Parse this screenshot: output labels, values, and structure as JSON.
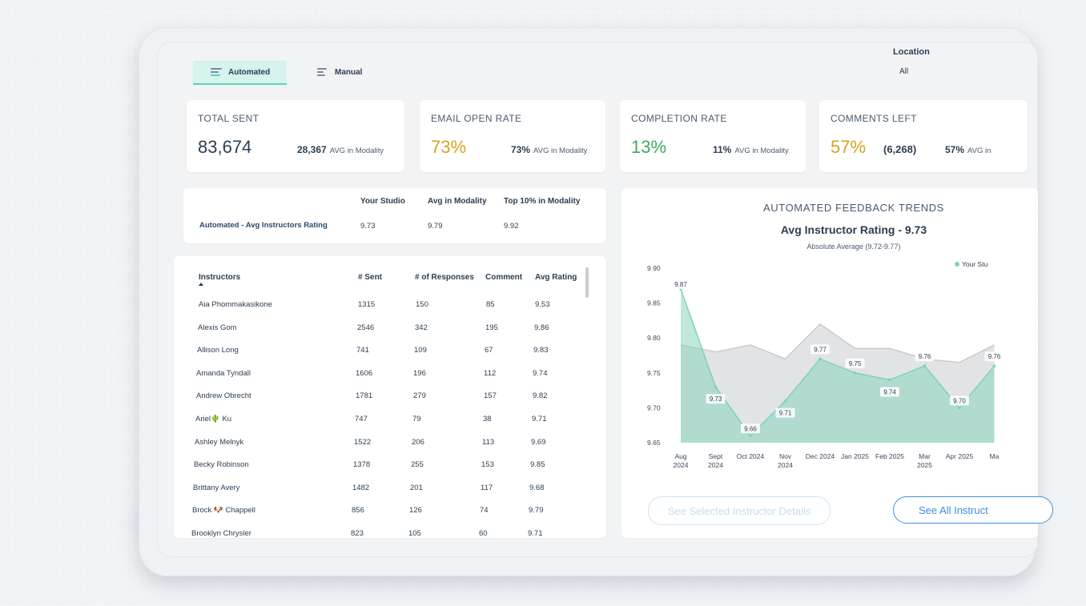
{
  "modes": [
    {
      "label": "Automated",
      "active": true
    },
    {
      "label": "Manual",
      "active": false
    }
  ],
  "location": {
    "label": "Location",
    "value": "All"
  },
  "kpis": [
    {
      "title": "TOTAL SENT",
      "value": "83,674",
      "value_color": "#2c3e50",
      "avg_value": "28,367",
      "avg_label": "AVG in Modality"
    },
    {
      "title": "EMAIL OPEN RATE",
      "value": "73%",
      "value_color": "#d9a21b",
      "avg_value": "73%",
      "avg_label": "AVG in Modality"
    },
    {
      "title": "COMPLETION RATE",
      "value": "13%",
      "value_color": "#3eaa5c",
      "avg_value": "11%",
      "avg_label": "AVG in Modality"
    },
    {
      "title": "COMMENTS LEFT",
      "value": "57%",
      "value_color": "#d9a21b",
      "extra": "(6,268)",
      "avg_value": "57%",
      "avg_label": "AVG in"
    }
  ],
  "summary": {
    "headers": [
      "Your Studio",
      "Avg in Modality",
      "Top 10% in Modality"
    ],
    "row_label": "Automated - Avg Instructors Rating",
    "values": [
      "9.73",
      "9.79",
      "9.92"
    ]
  },
  "instructors": {
    "headers": [
      "Instructors",
      "# Sent",
      "# of Responses",
      "Comment",
      "Avg Rating"
    ],
    "rows": [
      {
        "name": "Aia Phommakasikone",
        "sent": "1315",
        "responses": "150",
        "comment": "85",
        "rating": "9.53"
      },
      {
        "name": "Alexis Gom",
        "sent": "2546",
        "responses": "342",
        "comment": "195",
        "rating": "9.86"
      },
      {
        "name": "Allison Long",
        "sent": "741",
        "responses": "109",
        "comment": "67",
        "rating": "9.83"
      },
      {
        "name": "Amanda Tyndall",
        "sent": "1606",
        "responses": "196",
        "comment": "112",
        "rating": "9.74"
      },
      {
        "name": "Andrew Obrecht",
        "sent": "1781",
        "responses": "279",
        "comment": "157",
        "rating": "9.82"
      },
      {
        "name": "Ariel🌵 Ku",
        "sent": "747",
        "responses": "79",
        "comment": "38",
        "rating": "9.71"
      },
      {
        "name": "Ashley Melnyk",
        "sent": "1522",
        "responses": "206",
        "comment": "113",
        "rating": "9.69"
      },
      {
        "name": "Becky Robinson",
        "sent": "1378",
        "responses": "255",
        "comment": "153",
        "rating": "9.85"
      },
      {
        "name": "Brittany Avery",
        "sent": "1482",
        "responses": "201",
        "comment": "117",
        "rating": "9.68"
      },
      {
        "name": "Brock 🐶 Chappell",
        "sent": "856",
        "responses": "126",
        "comment": "74",
        "rating": "9.79"
      },
      {
        "name": "Brooklyn Chrysler",
        "sent": "823",
        "responses": "105",
        "comment": "60",
        "rating": "9.71"
      }
    ]
  },
  "trends": {
    "heading": "AUTOMATED FEEDBACK TRENDS",
    "title": "Avg Instructor Rating - 9.73",
    "subtitle": "Absolute Average (9.72-9.77)"
  },
  "chart_data": {
    "type": "area",
    "categories": [
      "Aug 2024",
      "Sept 2024",
      "Oct 2024",
      "Nov 2024",
      "Dec 2024",
      "Jan 2025",
      "Feb 2025",
      "Mar 2025",
      "Apr 2025",
      "Ma"
    ],
    "ylim": [
      9.65,
      9.9
    ],
    "yticks": [
      "9.90",
      "9.85",
      "9.80",
      "9.75",
      "9.70",
      "9.65"
    ],
    "series": [
      {
        "name": "Your Stu",
        "color": "#7fd3b8",
        "values": [
          9.87,
          9.73,
          9.66,
          9.71,
          9.77,
          9.75,
          9.74,
          9.76,
          9.7,
          9.76
        ],
        "labels": [
          "9.87",
          "9.73",
          "9.66",
          "9.71",
          "9.77",
          "9.75",
          "9.74",
          "9.76",
          "9.70",
          "9.76"
        ]
      },
      {
        "color": "#c9cccf",
        "values": [
          9.79,
          9.78,
          9.79,
          9.77,
          9.82,
          9.785,
          9.785,
          9.77,
          9.765,
          9.79
        ]
      }
    ],
    "legend_position": "top-right"
  },
  "buttons": {
    "details": "See Selected Instructor Details",
    "all": "See All Instruct"
  }
}
